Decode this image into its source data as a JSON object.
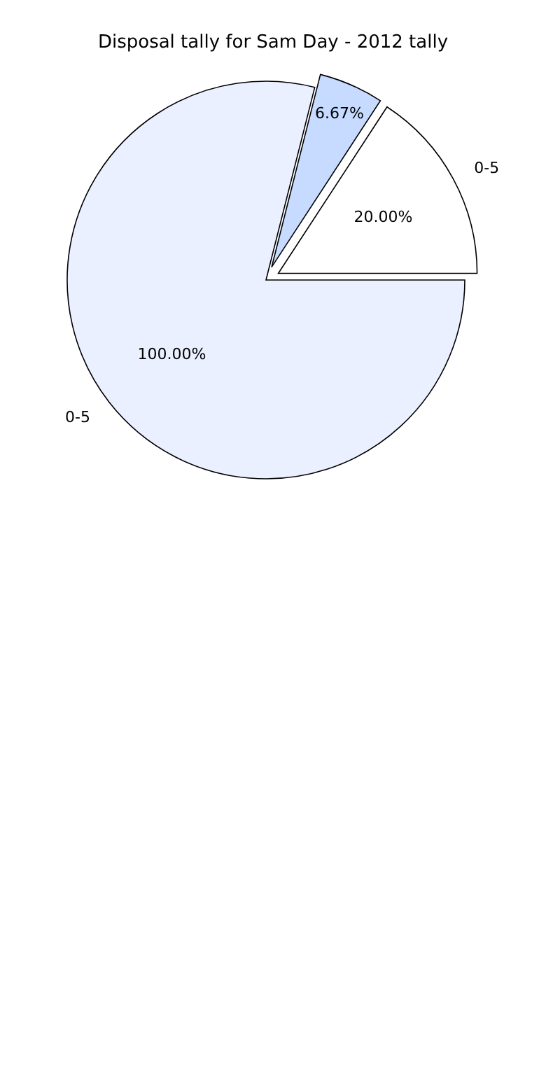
{
  "chart_data": {
    "type": "pie",
    "title": "Disposal tally for Sam Day - 2012 tally",
    "categories": [
      "0-5",
      null,
      "0-5"
    ],
    "values": [
      20,
      6.67,
      100
    ],
    "colors": [
      "#ffffff",
      "#c6dbff",
      "#eaf0ff"
    ],
    "value_labels": [
      "20.00%",
      "6.67%",
      "100.00%"
    ],
    "legend": false
  }
}
